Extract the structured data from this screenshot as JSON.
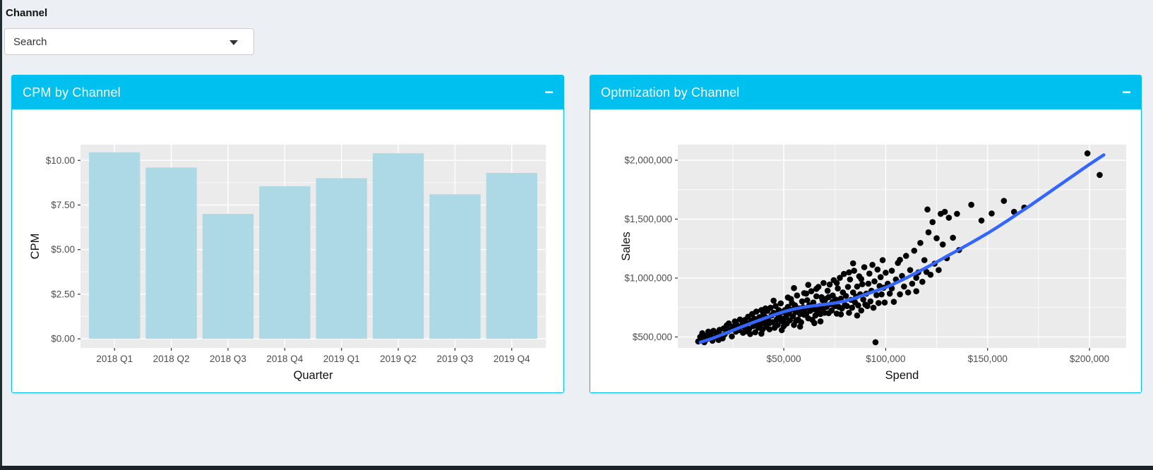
{
  "page": {
    "background": "#ecf0f5",
    "edge_color": "#222d32"
  },
  "filter": {
    "label": "Channel",
    "value": "Search"
  },
  "panels": [
    {
      "title": "CPM by Channel",
      "header_color": "#00c0ef",
      "collapse_label": "−"
    },
    {
      "title": "Optmization by Channel",
      "header_color": "#00c0ef",
      "collapse_label": "−"
    }
  ],
  "chart_data": [
    {
      "type": "bar",
      "title": "CPM by Channel",
      "categories": [
        "2018 Q1",
        "2018 Q2",
        "2018 Q3",
        "2018 Q4",
        "2019 Q1",
        "2019 Q2",
        "2019 Q3",
        "2019 Q4"
      ],
      "values": [
        10.45,
        9.6,
        7.0,
        8.55,
        9.0,
        10.4,
        8.1,
        9.3
      ],
      "xlabel": "Quarter",
      "ylabel": "CPM",
      "ytick_values": [
        0,
        2.5,
        5,
        7.5,
        10
      ],
      "ytick_labels": [
        "$0.00",
        "$2.50",
        "$5.00",
        "$7.50",
        "$10.00"
      ],
      "ytick_minor": [
        1.25,
        3.75,
        6.25,
        8.75
      ],
      "ylim": [
        -0.51,
        10.88
      ],
      "bar_color": "#ADD8E6",
      "panel_bg": "#EBEBEB",
      "grid_color": "#FFFFFF",
      "tick_color": "#333333",
      "tick_label_color": "#4d4d4d",
      "axis_title_color": "#111111",
      "grid": true,
      "legend": "none"
    },
    {
      "type": "scatter",
      "title": "Optmization by Channel",
      "xlabel": "Spend",
      "ylabel": "Sales",
      "units": "USD_thousands",
      "xtick_values": [
        50,
        100,
        150,
        200
      ],
      "xtick_labels": [
        "$50,000",
        "$100,000",
        "$150,000",
        "$200,000"
      ],
      "xtick_minor": [
        25,
        75,
        125,
        175
      ],
      "ytick_values": [
        500,
        1000,
        1500,
        2000
      ],
      "ytick_labels": [
        "$500,000",
        "$1,000,000",
        "$1,500,000",
        "$2,000,000"
      ],
      "ytick_minor": [
        750,
        1250,
        1750
      ],
      "xlim": [
        -2,
        218
      ],
      "ylim": [
        407,
        2132
      ],
      "point_color": "#000000",
      "point_radius": 4.3,
      "panel_bg": "#EBEBEB",
      "grid_color": "#FFFFFF",
      "tick_color": "#333333",
      "tick_label_color": "#4d4d4d",
      "axis_title_color": "#111111",
      "grid": true,
      "legend": "none",
      "smooth_line": {
        "color": "#3366FF",
        "width": 4.5,
        "points": [
          [
            9,
            455
          ],
          [
            15,
            488
          ],
          [
            20,
            522
          ],
          [
            25,
            556
          ],
          [
            30,
            590
          ],
          [
            35,
            623
          ],
          [
            40,
            655
          ],
          [
            45,
            686
          ],
          [
            50,
            714
          ],
          [
            55,
            737
          ],
          [
            60,
            754
          ],
          [
            65,
            766
          ],
          [
            70,
            776
          ],
          [
            75,
            788
          ],
          [
            80,
            805
          ],
          [
            85,
            830
          ],
          [
            90,
            860
          ],
          [
            95,
            890
          ],
          [
            100,
            920
          ],
          [
            105,
            958
          ],
          [
            110,
            1000
          ],
          [
            115,
            1044
          ],
          [
            120,
            1090
          ],
          [
            125,
            1136
          ],
          [
            130,
            1185
          ],
          [
            135,
            1232
          ],
          [
            140,
            1280
          ],
          [
            145,
            1330
          ],
          [
            150,
            1380
          ],
          [
            155,
            1434
          ],
          [
            160,
            1490
          ],
          [
            165,
            1548
          ],
          [
            170,
            1605
          ],
          [
            175,
            1665
          ],
          [
            180,
            1725
          ],
          [
            185,
            1785
          ],
          [
            190,
            1845
          ],
          [
            195,
            1905
          ],
          [
            200,
            1965
          ],
          [
            207,
            2045
          ]
        ]
      },
      "points": [
        [
          8,
          462
        ],
        [
          9,
          500
        ],
        [
          9.5,
          472
        ],
        [
          10,
          532
        ],
        [
          11,
          455
        ],
        [
          11.5,
          508
        ],
        [
          12,
          478
        ],
        [
          13,
          545
        ],
        [
          13.5,
          490
        ],
        [
          14,
          520
        ],
        [
          15,
          468
        ],
        [
          15.5,
          552
        ],
        [
          16,
          498
        ],
        [
          17,
          535
        ],
        [
          18,
          475
        ],
        [
          18.5,
          560
        ],
        [
          19,
          515
        ],
        [
          20,
          488
        ],
        [
          20.5,
          572
        ],
        [
          21,
          522
        ],
        [
          22,
          598
        ],
        [
          22.5,
          548
        ],
        [
          23,
          615
        ],
        [
          24,
          562
        ],
        [
          24.5,
          505
        ],
        [
          25,
          588
        ],
        [
          26,
          632
        ],
        [
          26.5,
          545
        ],
        [
          27,
          602
        ],
        [
          28,
          558
        ],
        [
          28.5,
          648
        ],
        [
          29,
          592
        ],
        [
          30,
          535
        ],
        [
          30,
          618
        ],
        [
          30.5,
          585
        ],
        [
          31,
          645
        ],
        [
          31.5,
          548
        ],
        [
          32,
          612
        ],
        [
          32.5,
          672
        ],
        [
          33,
          568
        ],
        [
          33.5,
          525
        ],
        [
          34,
          635
        ],
        [
          34.5,
          695
        ],
        [
          35,
          592
        ],
        [
          35.5,
          655
        ],
        [
          36,
          540
        ],
        [
          36.5,
          715
        ],
        [
          37,
          618
        ],
        [
          37.5,
          578
        ],
        [
          38,
          668
        ],
        [
          38.5,
          605
        ],
        [
          39,
          728
        ],
        [
          39.5,
          562
        ],
        [
          40,
          642
        ],
        [
          40,
          695
        ],
        [
          39,
          528
        ],
        [
          40.5,
          612
        ],
        [
          41,
          668
        ],
        [
          41.5,
          585
        ],
        [
          42,
          722
        ],
        [
          42.5,
          638
        ],
        [
          43,
          565
        ],
        [
          43.5,
          748
        ],
        [
          44,
          682
        ],
        [
          44.5,
          625
        ],
        [
          45,
          705
        ],
        [
          45.5,
          578
        ],
        [
          46,
          762
        ],
        [
          46.5,
          648
        ],
        [
          47,
          602
        ],
        [
          47.5,
          728
        ],
        [
          48,
          668
        ],
        [
          48.5,
          785
        ],
        [
          49,
          635
        ],
        [
          49.5,
          712
        ],
        [
          50,
          592
        ],
        [
          50,
          655
        ],
        [
          49,
          558
        ],
        [
          47,
          692
        ],
        [
          45,
          808
        ],
        [
          43,
          618
        ],
        [
          41,
          742
        ],
        [
          50.5,
          728
        ],
        [
          51,
          668
        ],
        [
          51.5,
          615
        ],
        [
          52,
          755
        ],
        [
          52.5,
          698
        ],
        [
          53,
          642
        ],
        [
          53.5,
          822
        ],
        [
          54,
          732
        ],
        [
          54.5,
          678
        ],
        [
          55,
          602
        ],
        [
          55.5,
          768
        ],
        [
          56,
          712
        ],
        [
          56.5,
          852
        ],
        [
          57,
          648
        ],
        [
          57.5,
          742
        ],
        [
          58,
          695
        ],
        [
          58.5,
          625
        ],
        [
          59,
          802
        ],
        [
          59.5,
          752
        ],
        [
          60,
          688
        ],
        [
          60,
          872
        ],
        [
          58,
          588
        ],
        [
          56,
          638
        ],
        [
          54,
          788
        ],
        [
          52,
          835
        ],
        [
          51,
          705
        ],
        [
          59,
          718
        ],
        [
          55,
          915
        ],
        [
          60.5,
          742
        ],
        [
          61,
          695
        ],
        [
          61.5,
          812
        ],
        [
          62,
          658
        ],
        [
          62.5,
          768
        ],
        [
          63,
          722
        ],
        [
          63.5,
          888
        ],
        [
          64,
          645
        ],
        [
          64.5,
          792
        ],
        [
          65,
          735
        ],
        [
          65.5,
          682
        ],
        [
          66,
          845
        ],
        [
          66.5,
          718
        ],
        [
          67,
          925
        ],
        [
          67.5,
          762
        ],
        [
          68,
          695
        ],
        [
          68.5,
          838
        ],
        [
          69,
          742
        ],
        [
          69.5,
          958
        ],
        [
          70,
          788
        ],
        [
          70,
          705
        ],
        [
          68,
          632
        ],
        [
          66,
          908
        ],
        [
          64,
          752
        ],
        [
          62,
          942
        ],
        [
          61,
          868
        ],
        [
          65,
          618
        ],
        [
          69,
          812
        ],
        [
          70.5,
          822
        ],
        [
          71,
          755
        ],
        [
          71.5,
          892
        ],
        [
          72,
          702
        ],
        [
          72.5,
          945
        ],
        [
          73,
          778
        ],
        [
          73.5,
          725
        ],
        [
          74,
          852
        ],
        [
          74.5,
          982
        ],
        [
          75,
          762
        ],
        [
          75.5,
          818
        ],
        [
          76,
          698
        ],
        [
          76.5,
          912
        ],
        [
          77,
          755
        ],
        [
          77.5,
          1002
        ],
        [
          78,
          825
        ],
        [
          78.5,
          742
        ],
        [
          79,
          878
        ],
        [
          79.5,
          1035
        ],
        [
          80,
          772
        ],
        [
          78,
          692
        ],
        [
          76,
          958
        ],
        [
          74,
          798
        ],
        [
          72,
          838
        ],
        [
          80.5,
          848
        ],
        [
          81,
          762
        ],
        [
          81.5,
          925
        ],
        [
          82,
          705
        ],
        [
          82.5,
          988
        ],
        [
          83,
          815
        ],
        [
          83.5,
          748
        ],
        [
          84,
          878
        ],
        [
          84.5,
          1062
        ],
        [
          85,
          792
        ],
        [
          85.5,
          842
        ],
        [
          86,
          928
        ],
        [
          86.5,
          768
        ],
        [
          87,
          1015
        ],
        [
          87.5,
          862
        ],
        [
          88,
          725
        ],
        [
          88.5,
          948
        ],
        [
          89,
          818
        ],
        [
          89.5,
          1092
        ],
        [
          90,
          775
        ],
        [
          88,
          992
        ],
        [
          84,
          1125
        ],
        [
          86,
          682
        ],
        [
          82,
          1048
        ],
        [
          90.5,
          868
        ],
        [
          91,
          762
        ],
        [
          91.5,
          952
        ],
        [
          92,
          1038
        ],
        [
          92.5,
          802
        ],
        [
          93,
          892
        ],
        [
          93.5,
          1112
        ],
        [
          94,
          748
        ],
        [
          94.5,
          972
        ],
        [
          95,
          455
        ],
        [
          95.5,
          855
        ],
        [
          96,
          1072
        ],
        [
          96.5,
          788
        ],
        [
          97,
          932
        ],
        [
          97.5,
          1008
        ],
        [
          98,
          862
        ],
        [
          98.5,
          1152
        ],
        [
          99,
          918
        ],
        [
          99.5,
          792
        ],
        [
          100,
          1045
        ],
        [
          101,
          952
        ],
        [
          102,
          868
        ],
        [
          103,
          1062
        ],
        [
          104,
          798
        ],
        [
          105,
          988
        ],
        [
          106,
          1128
        ],
        [
          107,
          862
        ],
        [
          108,
          1018
        ],
        [
          109,
          928
        ],
        [
          110,
          1188
        ],
        [
          111,
          878
        ],
        [
          112,
          1068
        ],
        [
          113,
          952
        ],
        [
          114,
          1232
        ],
        [
          115,
          1002
        ],
        [
          115,
          888
        ],
        [
          103,
          912
        ],
        [
          107,
          1155
        ],
        [
          116,
          1048
        ],
        [
          117,
          1298
        ],
        [
          118,
          968
        ],
        [
          119,
          1152
        ],
        [
          120,
          1052
        ],
        [
          120.5,
          1582
        ],
        [
          121,
          1388
        ],
        [
          122,
          1028
        ],
        [
          123,
          1475
        ],
        [
          124,
          1122
        ],
        [
          125,
          1338
        ],
        [
          126,
          1068
        ],
        [
          127,
          1545
        ],
        [
          128,
          1285
        ],
        [
          129,
          1562
        ],
        [
          130,
          1168
        ],
        [
          131,
          1512
        ],
        [
          133,
          1342
        ],
        [
          135,
          1545
        ],
        [
          136,
          1238
        ],
        [
          142,
          1622
        ],
        [
          147,
          1488
        ],
        [
          152,
          1548
        ],
        [
          158,
          1655
        ],
        [
          163,
          1562
        ],
        [
          168,
          1598
        ],
        [
          199,
          2058
        ],
        [
          205,
          1875
        ]
      ]
    }
  ]
}
